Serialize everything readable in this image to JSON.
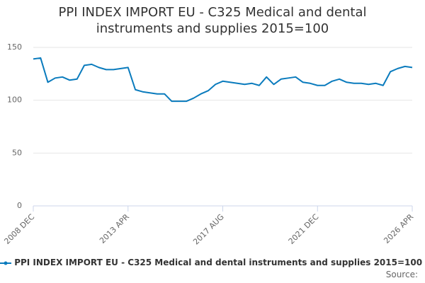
{
  "chart_data": {
    "type": "line",
    "title": "PPI INDEX IMPORT EU - C325 Medical and dental instruments and supplies 2015=100",
    "categories": [
      "2008 DEC",
      null,
      null,
      null,
      null,
      null,
      null,
      null,
      null,
      null,
      null,
      null,
      null,
      "2013 APR",
      null,
      null,
      null,
      null,
      null,
      null,
      null,
      null,
      null,
      null,
      null,
      null,
      "2017 AUG",
      null,
      null,
      null,
      null,
      null,
      null,
      null,
      null,
      null,
      null,
      null,
      null,
      "2021 DEC",
      null,
      null,
      null,
      null,
      null,
      null,
      null,
      null,
      null,
      null,
      null,
      null,
      "2026 APR"
    ],
    "series": [
      {
        "name": "PPI INDEX IMPORT EU - C325 Medical and dental instruments and supplies 2015=100",
        "color": "#0a7bbd",
        "values": [
          139,
          140,
          117,
          121,
          122,
          119,
          120,
          133,
          134,
          131,
          129,
          129,
          130,
          131,
          110,
          108,
          107,
          106,
          106,
          99,
          99,
          99,
          102,
          106,
          109,
          115,
          118,
          117,
          116,
          115,
          116,
          114,
          122,
          115,
          120,
          121,
          122,
          117,
          116,
          114,
          114,
          118,
          120,
          117,
          116,
          116,
          115,
          116,
          114,
          127,
          130,
          132,
          131
        ]
      }
    ],
    "ylim": [
      0,
      150
    ],
    "yticks": [
      0,
      50,
      100,
      150
    ],
    "grid": true,
    "source": "Source:"
  }
}
